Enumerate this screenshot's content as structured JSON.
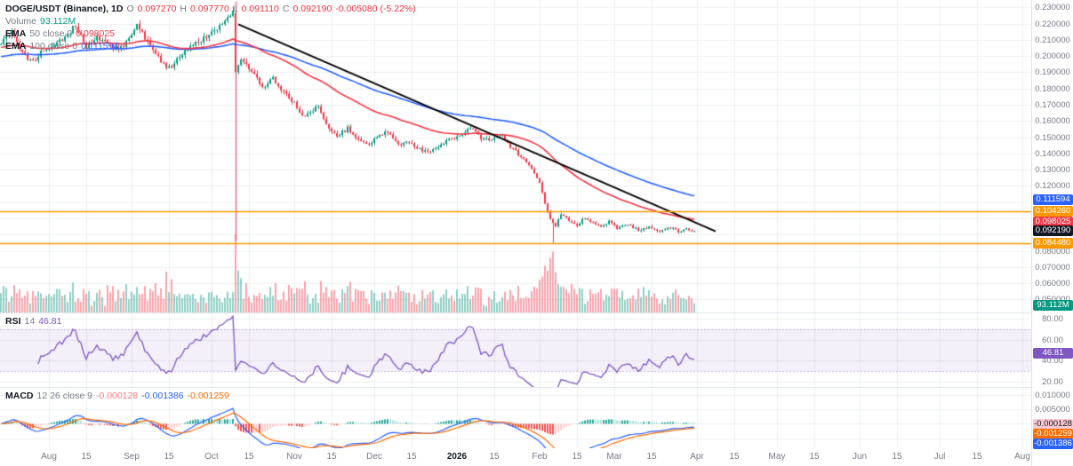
{
  "legend": {
    "symbol_title": "DOGE/USDT (Binance), 1D",
    "ohlc": {
      "o_label": "O",
      "o": "0.097270",
      "h_label": "H",
      "h": "0.097770",
      "l_label": "L",
      "l": "0.091110",
      "c_label": "C",
      "c": "0.092190",
      "change": "-0.005080 (-5.22%)"
    },
    "volume_label": "Volume",
    "volume_value": "93.112M",
    "ema50_name": "EMA",
    "ema50_params": "50 close 0",
    "ema50_value": "0.098025",
    "ema100_name": "EMA",
    "ema100_params": "100 close 0",
    "ema100_value": "0.111594",
    "rsi_name": "RSI",
    "rsi_params": "14",
    "rsi_value": "46.81",
    "macd_name": "MACD",
    "macd_params": "12 26 close 9",
    "macd_hist_value": "-0.000128",
    "macd_value": "-0.001386",
    "macd_signal_value": "-0.001259"
  },
  "axes": {
    "price_labels": [
      "0.230000",
      "0.220000",
      "0.210000",
      "0.200000",
      "0.190000",
      "0.180000",
      "0.170000",
      "0.160000",
      "0.150000",
      "0.140000",
      "0.130000",
      "0.120000",
      "0.080000",
      "0.070000",
      "0.060000",
      "0.050000"
    ],
    "rsi_labels": [
      {
        "text": "80.00",
        "value": 80
      },
      {
        "text": "60.00",
        "value": 60
      },
      {
        "text": "40.00",
        "value": 40
      },
      {
        "text": "20.00",
        "value": 20
      }
    ],
    "macd_labels": [
      {
        "text": "0.010000",
        "value": 0.01
      },
      {
        "text": "0.005000",
        "value": 0.005
      }
    ],
    "time_labels": [
      {
        "text": "Aug",
        "day": 0
      },
      {
        "text": "15",
        "day": 14
      },
      {
        "text": "Sep",
        "day": 31
      },
      {
        "text": "15",
        "day": 45
      },
      {
        "text": "Oct",
        "day": 61
      },
      {
        "text": "15",
        "day": 75
      },
      {
        "text": "Nov",
        "day": 92
      },
      {
        "text": "15",
        "day": 106
      },
      {
        "text": "Dec",
        "day": 122
      },
      {
        "text": "15",
        "day": 136
      },
      {
        "text": "2026",
        "day": 153,
        "emphasis": true
      },
      {
        "text": "15",
        "day": 167
      },
      {
        "text": "Feb",
        "day": 184
      },
      {
        "text": "15",
        "day": 198
      },
      {
        "text": "Mar",
        "day": 212
      },
      {
        "text": "15",
        "day": 226
      },
      {
        "text": "Apr",
        "day": 243
      },
      {
        "text": "15",
        "day": 257
      },
      {
        "text": "May",
        "day": 273
      },
      {
        "text": "15",
        "day": 287
      },
      {
        "text": "Jun",
        "day": 304
      },
      {
        "text": "15",
        "day": 318
      },
      {
        "text": "Jul",
        "day": 334
      },
      {
        "text": "15",
        "day": 348
      },
      {
        "text": "Aug",
        "day": 365
      }
    ]
  },
  "badges": {
    "price": [
      {
        "text": "0.111594",
        "price": 0.111594,
        "bg": "#2962ff"
      },
      {
        "text": "0.104260",
        "price": 0.10426,
        "bg": "#ff9800"
      },
      {
        "text": "0.098025",
        "price": 0.098025,
        "bg": "#f23645"
      },
      {
        "text": "0.092190",
        "price": 0.09219,
        "bg": "#131722"
      },
      {
        "text": "0.084480",
        "price": 0.08448,
        "bg": "#ff9800"
      }
    ],
    "volume": {
      "text": "93.112M",
      "bg": "#089981"
    },
    "rsi": {
      "text": "46.81",
      "value": 46.81,
      "bg": "#7e57c2"
    },
    "macd": [
      {
        "text": "-0.000128",
        "value": -0.000128,
        "bg": "#f9c9cf",
        "fg": "#131722"
      },
      {
        "text": "-0.001259",
        "value": -0.001259,
        "bg": "#ff6d00"
      },
      {
        "text": "-0.001386",
        "value": -0.001386,
        "bg": "#2962ff"
      }
    ]
  },
  "colors": {
    "up": "#089981",
    "down": "#f23645",
    "vol_up": "rgba(8,153,129,0.45)",
    "vol_down": "rgba(242,54,69,0.45)",
    "ema50": "#f23645",
    "ema100": "#2962ff",
    "trend": "#000000",
    "hline": "#ff9800",
    "rsi": "#7e57c2",
    "rsi_band": "rgba(126,87,194,0.09)",
    "rsi_band_edge": "rgba(126,87,194,0.4)",
    "macd": "#2962ff",
    "signal": "#ff6d00",
    "hist_up": "#26a69a",
    "hist_up_weak": "#b2dfdb",
    "hist_dn": "#ef5350",
    "hist_dn_weak": "#fccbcd",
    "grid": "rgba(42,46,57,0.08)",
    "separator": "#e0e3eb",
    "axis_text": "#787b86",
    "text": "#131722"
  },
  "chart_data": {
    "type": "candlestick",
    "symbol": "DOGE/USDT",
    "exchange": "Binance",
    "interval": "1D",
    "panes": [
      "price+volume",
      "RSI",
      "MACD"
    ],
    "day_range": [
      -18,
      242
    ],
    "price_axis_range": [
      0.042,
      0.2345
    ],
    "rsi_axis_range": [
      15,
      85
    ],
    "macd_axis_range": [
      -0.0085,
      0.0125
    ],
    "volume_axis_max_m": 800,
    "price_anchors": [
      [
        -18,
        0.209
      ],
      [
        -14,
        0.216
      ],
      [
        -10,
        0.202
      ],
      [
        -6,
        0.196
      ],
      [
        -2,
        0.204
      ],
      [
        2,
        0.2075
      ],
      [
        6,
        0.212
      ],
      [
        10,
        0.2185
      ],
      [
        14,
        0.206
      ],
      [
        18,
        0.2125
      ],
      [
        22,
        0.207
      ],
      [
        26,
        0.2035
      ],
      [
        30,
        0.211
      ],
      [
        33,
        0.2185
      ],
      [
        37,
        0.209
      ],
      [
        41,
        0.199
      ],
      [
        45,
        0.1925
      ],
      [
        49,
        0.199
      ],
      [
        53,
        0.2055
      ],
      [
        57,
        0.21
      ],
      [
        61,
        0.2145
      ],
      [
        65,
        0.2205
      ],
      [
        69,
        0.2275
      ],
      [
        70,
        0.19
      ],
      [
        72,
        0.1975
      ],
      [
        75,
        0.192
      ],
      [
        78,
        0.1855
      ],
      [
        81,
        0.18
      ],
      [
        84,
        0.1865
      ],
      [
        88,
        0.178
      ],
      [
        92,
        0.171
      ],
      [
        95,
        0.163
      ],
      [
        98,
        0.1655
      ],
      [
        101,
        0.169
      ],
      [
        104,
        0.158
      ],
      [
        108,
        0.1505
      ],
      [
        112,
        0.1555
      ],
      [
        116,
        0.1485
      ],
      [
        120,
        0.1455
      ],
      [
        123,
        0.1495
      ],
      [
        127,
        0.1535
      ],
      [
        131,
        0.1455
      ],
      [
        135,
        0.1475
      ],
      [
        139,
        0.1425
      ],
      [
        143,
        0.1405
      ],
      [
        147,
        0.1455
      ],
      [
        151,
        0.149
      ],
      [
        155,
        0.1525
      ],
      [
        158,
        0.1555
      ],
      [
        162,
        0.1495
      ],
      [
        166,
        0.1475
      ],
      [
        169,
        0.152
      ],
      [
        173,
        0.1445
      ],
      [
        177,
        0.1375
      ],
      [
        181,
        0.1305
      ],
      [
        184,
        0.1225
      ],
      [
        186,
        0.109
      ],
      [
        188,
        0.0995
      ],
      [
        190,
        0.0955
      ],
      [
        192,
        0.1025
      ],
      [
        195,
        0.0985
      ],
      [
        198,
        0.0955
      ],
      [
        201,
        0.1005
      ],
      [
        204,
        0.0975
      ],
      [
        207,
        0.0945
      ],
      [
        210,
        0.0985
      ],
      [
        213,
        0.0935
      ],
      [
        217,
        0.0965
      ],
      [
        221,
        0.0925
      ],
      [
        225,
        0.0945
      ],
      [
        229,
        0.0915
      ],
      [
        233,
        0.0945
      ],
      [
        236,
        0.0915
      ],
      [
        239,
        0.0935
      ],
      [
        242,
        0.09219
      ]
    ],
    "crash_candle": {
      "d": 70,
      "o": 0.2265,
      "h": 0.2335,
      "l": 0.0862,
      "c": 0.19
    },
    "wick_lows": [
      [
        189,
        0.0848
      ]
    ],
    "volume_spikes": [
      [
        8,
        210
      ],
      [
        22,
        280
      ],
      [
        33,
        260
      ],
      [
        40,
        300
      ],
      [
        44,
        420
      ],
      [
        46,
        340
      ],
      [
        70,
        800
      ],
      [
        71,
        430
      ],
      [
        72,
        350
      ],
      [
        74,
        300
      ],
      [
        96,
        320
      ],
      [
        104,
        260
      ],
      [
        157,
        270
      ],
      [
        173,
        230
      ],
      [
        184,
        330
      ],
      [
        186,
        480
      ],
      [
        188,
        560
      ],
      [
        189,
        620
      ],
      [
        190,
        410
      ],
      [
        193,
        260
      ],
      [
        196,
        290
      ],
      [
        199,
        250
      ],
      [
        207,
        240
      ],
      [
        242,
        93.112
      ]
    ],
    "last_close": 0.09219,
    "last_volume_m": 93.112,
    "emas": [
      {
        "period": 50,
        "value": 0.098025
      },
      {
        "period": 100,
        "value": 0.111594
      }
    ],
    "rsi": {
      "period": 14,
      "upper": 70,
      "lower": 30,
      "value": 46.81
    },
    "macd": {
      "fast": 12,
      "slow": 26,
      "signal": 9,
      "hist": -0.000128,
      "macd": -0.001386,
      "signal_value": -0.001259
    },
    "macd_grid": [
      0.01,
      0.005,
      0,
      -0.005
    ],
    "hlines": [
      {
        "price": 0.10426,
        "color": "#ff9800"
      },
      {
        "price": 0.08448,
        "color": "#ff9800"
      }
    ],
    "trendline": {
      "d1": 71,
      "p1": 0.2195,
      "d2": 250,
      "p2": 0.092,
      "color": "#000000"
    },
    "month_grid_days": [
      0,
      31,
      61,
      92,
      122,
      153,
      184,
      212,
      243,
      273,
      304,
      334,
      365
    ]
  }
}
